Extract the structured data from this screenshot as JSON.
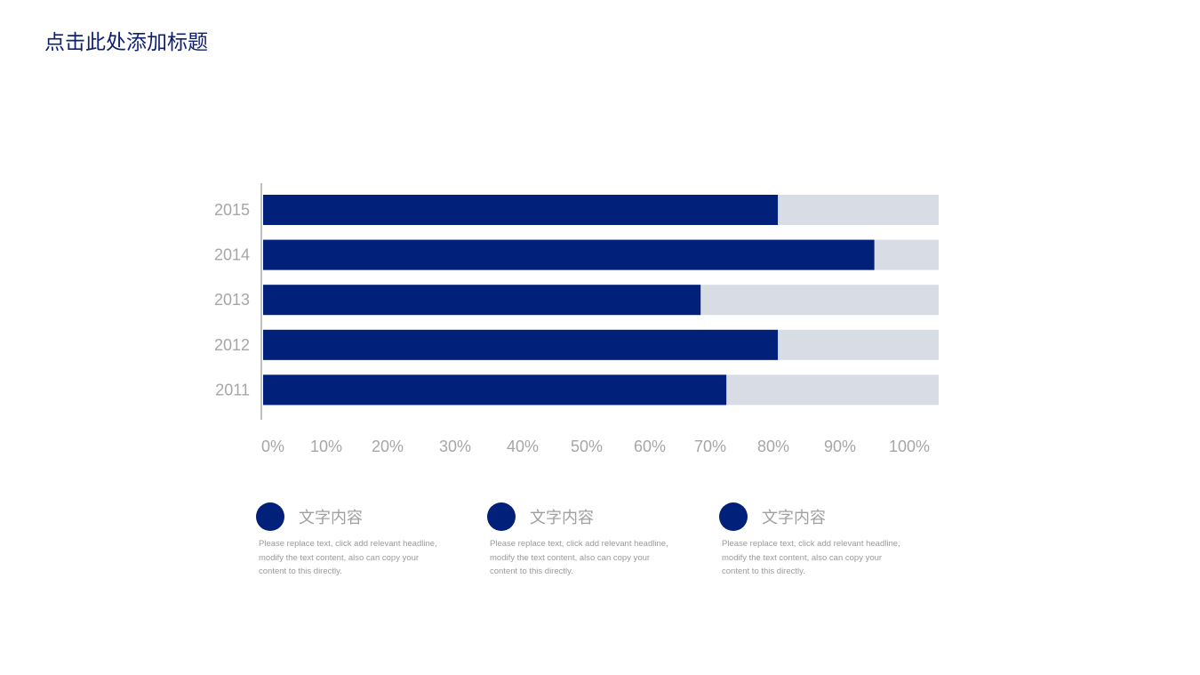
{
  "title": "点击此处添加标题",
  "colors": {
    "bar": "#00207a",
    "track": "#d7dce5",
    "axis_text": "#a6a6a6",
    "title": "#0e2070"
  },
  "chart_data": {
    "type": "bar",
    "orientation": "horizontal",
    "categories": [
      "2015",
      "2014",
      "2013",
      "2012",
      "2011"
    ],
    "values": [
      80,
      95,
      68,
      80,
      72
    ],
    "xlim": [
      0,
      105
    ],
    "xticks": [
      "0%",
      "10%",
      "20%",
      "30%",
      "40%",
      "50%",
      "60%",
      "70%",
      "80%",
      "90%",
      "100%"
    ],
    "title": "",
    "xlabel": "",
    "ylabel": "",
    "grid": false
  },
  "items": [
    {
      "heading": "文字内容",
      "body": "Please replace text, click add relevant headline, modify the text content, also can copy your content to this directly."
    },
    {
      "heading": "文字内容",
      "body": "Please replace text, click add relevant headline, modify the text content, also can copy your content to this directly."
    },
    {
      "heading": "文字内容",
      "body": "Please replace text, click add relevant headline, modify the text content, also can copy your content to this directly."
    }
  ]
}
